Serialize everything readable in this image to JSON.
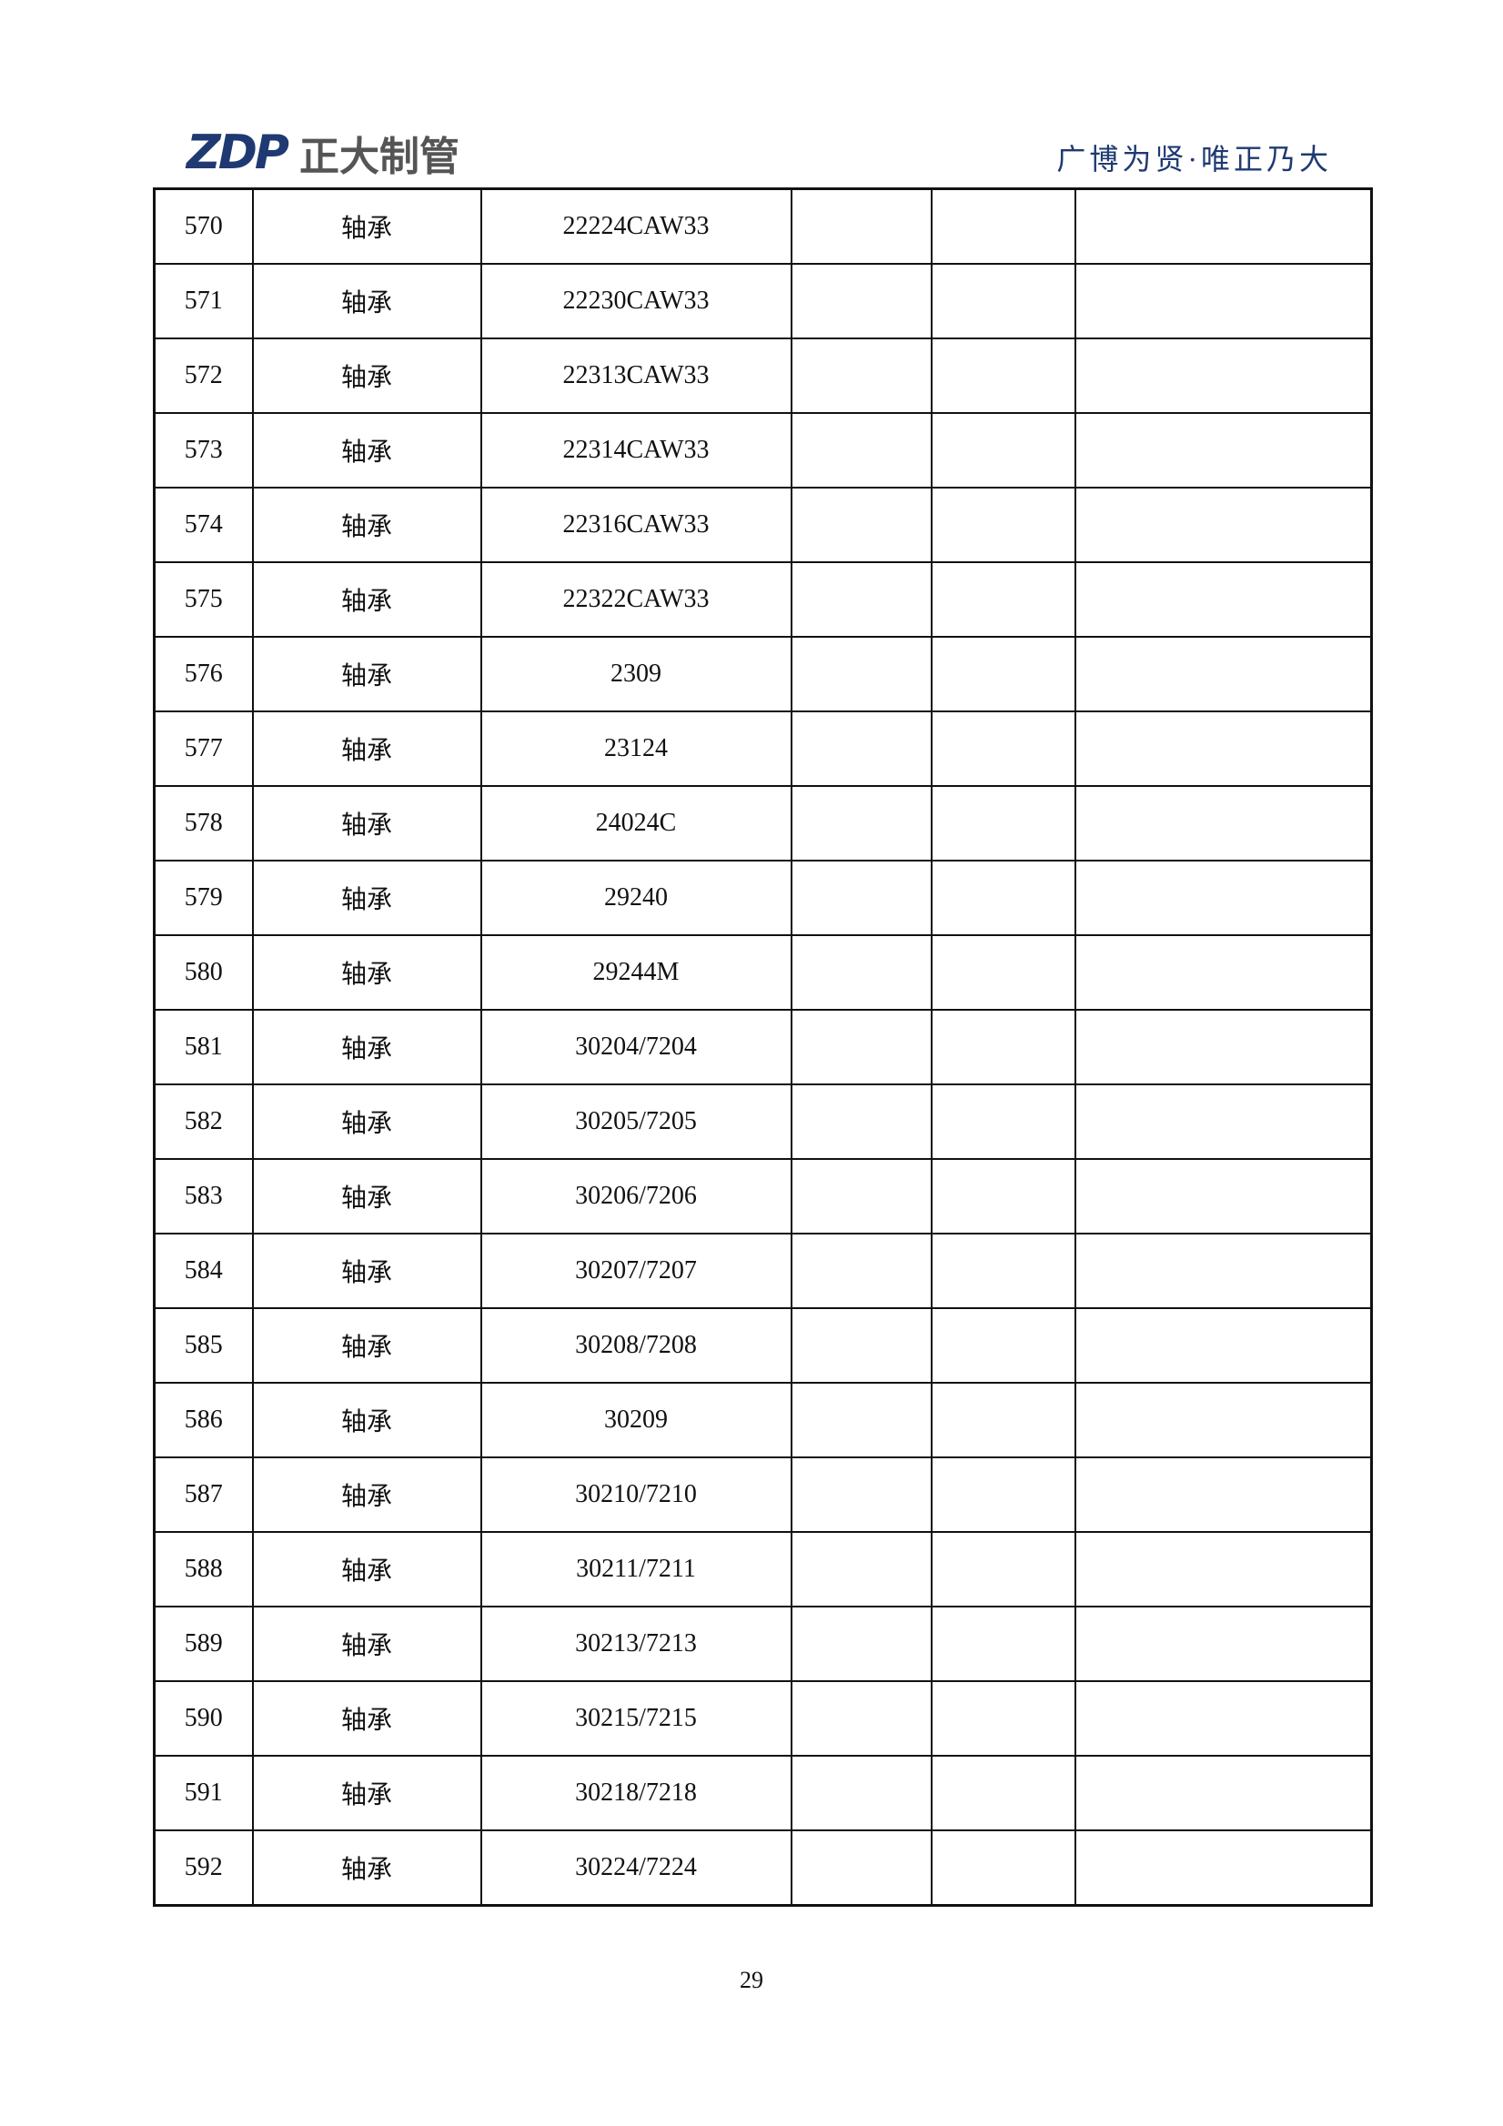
{
  "header": {
    "logo_mark": "ZDP",
    "logo_text": "正大制管",
    "slogan": "广博为贤·唯正乃大",
    "brand_color": "#1f3a73"
  },
  "table": {
    "rows": [
      {
        "no": "570",
        "name": "轴承",
        "model": "22224CAW33"
      },
      {
        "no": "571",
        "name": "轴承",
        "model": "22230CAW33"
      },
      {
        "no": "572",
        "name": "轴承",
        "model": "22313CAW33"
      },
      {
        "no": "573",
        "name": "轴承",
        "model": "22314CAW33"
      },
      {
        "no": "574",
        "name": "轴承",
        "model": "22316CAW33"
      },
      {
        "no": "575",
        "name": "轴承",
        "model": "22322CAW33"
      },
      {
        "no": "576",
        "name": "轴承",
        "model": "2309"
      },
      {
        "no": "577",
        "name": "轴承",
        "model": "23124"
      },
      {
        "no": "578",
        "name": "轴承",
        "model": "24024C"
      },
      {
        "no": "579",
        "name": "轴承",
        "model": "29240"
      },
      {
        "no": "580",
        "name": "轴承",
        "model": "29244M"
      },
      {
        "no": "581",
        "name": "轴承",
        "model": "30204/7204"
      },
      {
        "no": "582",
        "name": "轴承",
        "model": "30205/7205"
      },
      {
        "no": "583",
        "name": "轴承",
        "model": "30206/7206"
      },
      {
        "no": "584",
        "name": "轴承",
        "model": "30207/7207"
      },
      {
        "no": "585",
        "name": "轴承",
        "model": "30208/7208"
      },
      {
        "no": "586",
        "name": "轴承",
        "model": "30209"
      },
      {
        "no": "587",
        "name": "轴承",
        "model": "30210/7210"
      },
      {
        "no": "588",
        "name": "轴承",
        "model": "30211/7211"
      },
      {
        "no": "589",
        "name": "轴承",
        "model": "30213/7213"
      },
      {
        "no": "590",
        "name": "轴承",
        "model": "30215/7215"
      },
      {
        "no": "591",
        "name": "轴承",
        "model": "30218/7218"
      },
      {
        "no": "592",
        "name": "轴承",
        "model": "30224/7224"
      }
    ]
  },
  "footer": {
    "page_number": "29"
  }
}
